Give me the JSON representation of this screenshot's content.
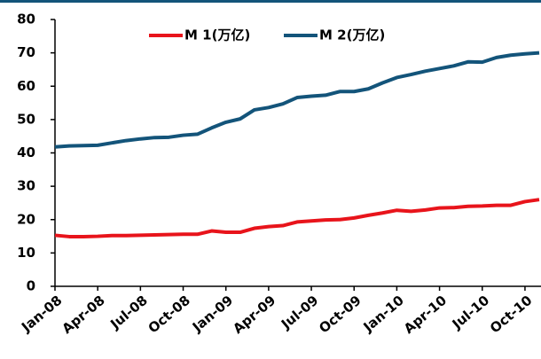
{
  "chart_data": {
    "type": "line",
    "categories": [
      "Jan-08",
      null,
      null,
      "Apr-08",
      null,
      null,
      "Jul-08",
      null,
      null,
      "Oct-08",
      null,
      null,
      "Jan-09",
      null,
      null,
      "Apr-09",
      null,
      null,
      "Jul-09",
      null,
      null,
      "Oct-09",
      null,
      null,
      "Jan-10",
      null,
      null,
      "Apr-10",
      null,
      null,
      "Jul-10",
      null,
      null,
      "Oct-10",
      null
    ],
    "series": [
      {
        "name": "M 1(万亿)",
        "color": "#e8141b",
        "values": [
          15.3,
          14.9,
          14.9,
          15.0,
          15.2,
          15.2,
          15.3,
          15.4,
          15.5,
          15.6,
          15.6,
          16.6,
          16.2,
          16.2,
          17.4,
          17.9,
          18.2,
          19.3,
          19.6,
          19.9,
          20.0,
          20.5,
          21.3,
          22.0,
          22.8,
          22.5,
          22.9,
          23.5,
          23.6,
          24.0,
          24.1,
          24.3,
          24.3,
          25.4,
          26.0
        ]
      },
      {
        "name": "M 2(万亿)",
        "color": "#13547a",
        "values": [
          41.8,
          42.1,
          42.2,
          42.3,
          43.0,
          43.7,
          44.2,
          44.6,
          44.7,
          45.3,
          45.6,
          47.5,
          49.2,
          50.2,
          52.9,
          53.6,
          54.7,
          56.6,
          57.0,
          57.3,
          58.4,
          58.4,
          59.2,
          61.0,
          62.6,
          63.5,
          64.5,
          65.3,
          66.1,
          67.3,
          67.2,
          68.6,
          69.3,
          69.7,
          70.0
        ]
      }
    ],
    "ylim": [
      0,
      80
    ],
    "yticks": [
      0,
      10,
      20,
      30,
      40,
      50,
      60,
      70,
      80
    ],
    "legend": "top"
  }
}
